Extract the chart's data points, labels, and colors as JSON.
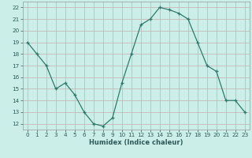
{
  "x": [
    0,
    1,
    2,
    3,
    4,
    5,
    6,
    7,
    8,
    9,
    10,
    11,
    12,
    13,
    14,
    15,
    16,
    17,
    18,
    19,
    20,
    21,
    22,
    23
  ],
  "y": [
    19,
    18,
    17,
    15,
    15.5,
    14.5,
    13,
    12,
    11.8,
    12.5,
    15.5,
    18,
    20.5,
    21,
    22,
    21.8,
    21.5,
    21,
    19,
    17,
    16.5,
    14,
    14,
    13
  ],
  "line_color": "#2d7a6e",
  "marker_color": "#2d7a6e",
  "bg_color": "#cceee8",
  "grid_major_color": "#c8b8b8",
  "grid_minor_color": "#ddd0d0",
  "xlabel": "Humidex (Indice chaleur)",
  "xlim": [
    -0.5,
    23.5
  ],
  "ylim": [
    11.5,
    22.5
  ],
  "yticks": [
    12,
    13,
    14,
    15,
    16,
    17,
    18,
    19,
    20,
    21,
    22
  ],
  "xticks": [
    0,
    1,
    2,
    3,
    4,
    5,
    6,
    7,
    8,
    9,
    10,
    11,
    12,
    13,
    14,
    15,
    16,
    17,
    18,
    19,
    20,
    21,
    22,
    23
  ],
  "tick_color": "#2d5a5a",
  "label_fontsize": 6.0,
  "tick_fontsize": 5.2
}
